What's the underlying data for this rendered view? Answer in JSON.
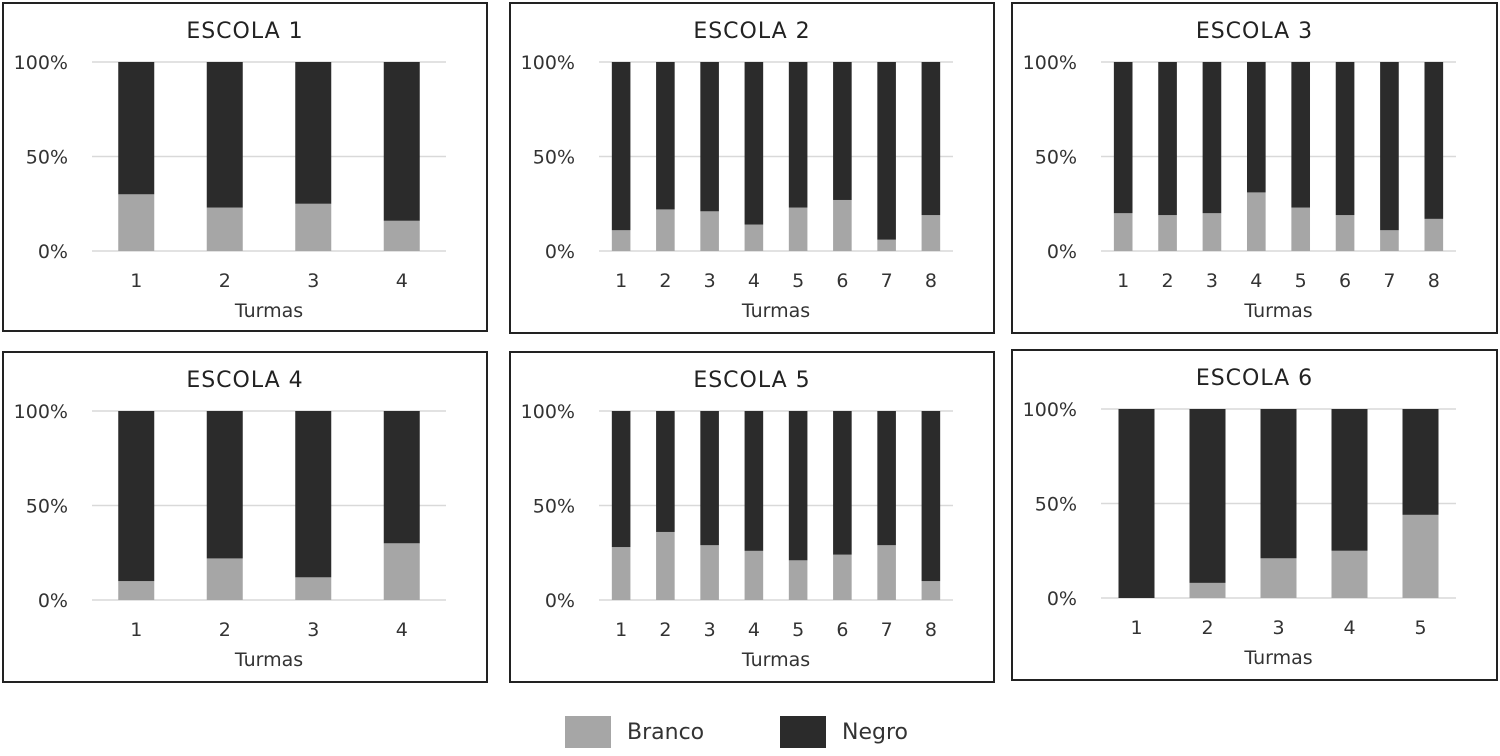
{
  "colors": {
    "branco": "#a6a6a6",
    "negro": "#2b2b2b",
    "grid": "#d9d9d9"
  },
  "legend": {
    "branco": "Branco",
    "negro": "Negro"
  },
  "chart_data": [
    {
      "type": "bar",
      "stacked": true,
      "title": "ESCOLA 1",
      "xlabel": "Turmas",
      "ylabel": "",
      "yticks": [
        "0%",
        "50%",
        "100%"
      ],
      "ylim": [
        0,
        100
      ],
      "categories": [
        "1",
        "2",
        "3",
        "4"
      ],
      "series": [
        {
          "name": "Branco",
          "values": [
            30,
            23,
            25,
            16
          ]
        },
        {
          "name": "Negro",
          "values": [
            70,
            77,
            75,
            84
          ]
        }
      ]
    },
    {
      "type": "bar",
      "stacked": true,
      "title": "ESCOLA 2",
      "xlabel": "Turmas",
      "ylabel": "",
      "yticks": [
        "0%",
        "50%",
        "100%"
      ],
      "ylim": [
        0,
        100
      ],
      "categories": [
        "1",
        "2",
        "3",
        "4",
        "5",
        "6",
        "7",
        "8"
      ],
      "series": [
        {
          "name": "Branco",
          "values": [
            11,
            22,
            21,
            14,
            23,
            27,
            6,
            19
          ]
        },
        {
          "name": "Negro",
          "values": [
            89,
            78,
            79,
            86,
            77,
            73,
            94,
            81
          ]
        }
      ]
    },
    {
      "type": "bar",
      "stacked": true,
      "title": "ESCOLA 3",
      "xlabel": "Turmas",
      "ylabel": "",
      "yticks": [
        "0%",
        "50%",
        "100%"
      ],
      "ylim": [
        0,
        100
      ],
      "categories": [
        "1",
        "2",
        "3",
        "4",
        "5",
        "6",
        "7",
        "8"
      ],
      "series": [
        {
          "name": "Branco",
          "values": [
            20,
            19,
            20,
            31,
            23,
            19,
            11,
            17
          ]
        },
        {
          "name": "Negro",
          "values": [
            80,
            81,
            80,
            69,
            77,
            81,
            89,
            83
          ]
        }
      ]
    },
    {
      "type": "bar",
      "stacked": true,
      "title": "ESCOLA 4",
      "xlabel": "Turmas",
      "ylabel": "",
      "yticks": [
        "0%",
        "50%",
        "100%"
      ],
      "ylim": [
        0,
        100
      ],
      "categories": [
        "1",
        "2",
        "3",
        "4"
      ],
      "series": [
        {
          "name": "Branco",
          "values": [
            10,
            22,
            12,
            30
          ]
        },
        {
          "name": "Negro",
          "values": [
            90,
            78,
            88,
            70
          ]
        }
      ]
    },
    {
      "type": "bar",
      "stacked": true,
      "title": "ESCOLA 5",
      "xlabel": "Turmas",
      "ylabel": "",
      "yticks": [
        "0%",
        "50%",
        "100%"
      ],
      "ylim": [
        0,
        100
      ],
      "categories": [
        "1",
        "2",
        "3",
        "4",
        "5",
        "6",
        "7",
        "8"
      ],
      "series": [
        {
          "name": "Branco",
          "values": [
            28,
            36,
            29,
            26,
            21,
            24,
            29,
            10
          ]
        },
        {
          "name": "Negro",
          "values": [
            72,
            64,
            71,
            74,
            79,
            76,
            71,
            90
          ]
        }
      ]
    },
    {
      "type": "bar",
      "stacked": true,
      "title": "ESCOLA 6",
      "xlabel": "Turmas",
      "ylabel": "",
      "yticks": [
        "0%",
        "50%",
        "100%"
      ],
      "ylim": [
        0,
        100
      ],
      "categories": [
        "1",
        "2",
        "3",
        "4",
        "5"
      ],
      "series": [
        {
          "name": "Branco",
          "values": [
            0,
            8,
            21,
            25,
            44
          ]
        },
        {
          "name": "Negro",
          "values": [
            100,
            92,
            79,
            75,
            56
          ]
        }
      ]
    }
  ]
}
